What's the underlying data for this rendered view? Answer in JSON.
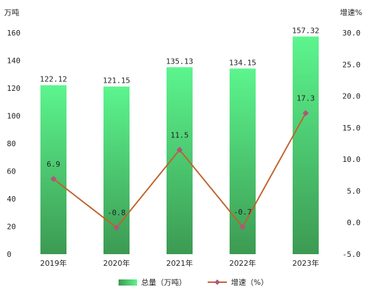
{
  "chart_data": {
    "type": "bar",
    "categories": [
      "2019年",
      "2020年",
      "2021年",
      "2022年",
      "2023年"
    ],
    "series": [
      {
        "name": "总量（万吨）",
        "type": "bar",
        "axis": "left",
        "values": [
          122.12,
          121.15,
          135.13,
          134.15,
          157.32
        ]
      },
      {
        "name": "增速（%）",
        "type": "line",
        "axis": "right",
        "values": [
          6.9,
          -0.8,
          11.5,
          -0.7,
          17.3
        ]
      }
    ],
    "left_axis": {
      "label": "万吨",
      "min": 0,
      "max": 160,
      "step": 20
    },
    "right_axis": {
      "label": "增速%",
      "min": -5,
      "max": 30,
      "step": 5
    },
    "bar_value_labels": [
      "122.12",
      "121.15",
      "135.13",
      "134.15",
      "157.32"
    ],
    "line_value_labels": [
      "6.9",
      "-0.8",
      "11.5",
      "-0.7",
      "17.3"
    ],
    "legend_position": "bottom",
    "grid": false,
    "colors": {
      "bar_top": "#5cf58e",
      "bar_bottom": "#3c9a52",
      "line": "#c0622d",
      "marker": "#b0567d"
    }
  }
}
